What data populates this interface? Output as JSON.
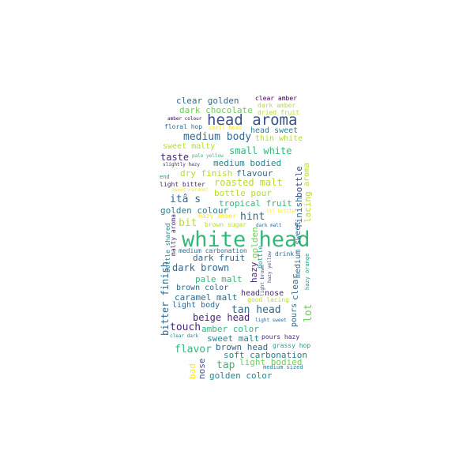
{
  "word_cloud": {
    "words": [
      {
        "text": "white head",
        "color": "#35b779"
      },
      {
        "text": "head aroma",
        "color": "#3b528b"
      },
      {
        "text": "medium body",
        "color": "#31688e"
      },
      {
        "text": "clear golden",
        "color": "#31688e"
      },
      {
        "text": "clear amber",
        "color": "#440154"
      },
      {
        "text": "dark chocolate",
        "color": "#6ece58"
      },
      {
        "text": "dark amber",
        "color": "#b5de2b"
      },
      {
        "text": "dried fruit",
        "color": "#b5de2b"
      },
      {
        "text": "amber colour",
        "color": "#440154"
      },
      {
        "text": "floral hop",
        "color": "#31688e"
      },
      {
        "text": "smell head",
        "color": "#fde725"
      },
      {
        "text": "head sweet",
        "color": "#26828e"
      },
      {
        "text": "thin white",
        "color": "#b5de2b"
      },
      {
        "text": "sweet malty",
        "color": "#b5de2b"
      },
      {
        "text": "small white",
        "color": "#35b779"
      },
      {
        "text": "pale yellow",
        "color": "#35b779"
      },
      {
        "text": "taste",
        "color": "#482878"
      },
      {
        "text": "medium bodied",
        "color": "#26828e"
      },
      {
        "text": "slightly hazy",
        "color": "#482878"
      },
      {
        "text": "dry finish",
        "color": "#b5de2b"
      },
      {
        "text": "flavour",
        "color": "#31688e"
      },
      {
        "text": "bottle",
        "color": "#3e4989"
      },
      {
        "text": "aroma",
        "color": "#b5de2b"
      },
      {
        "text": "end",
        "color": "#1f9e89"
      },
      {
        "text": "roasted malt",
        "color": "#b5de2b"
      },
      {
        "text": "light bitter",
        "color": "#482878"
      },
      {
        "text": "sweet caramel",
        "color": "#fde725"
      },
      {
        "text": "bottle pour",
        "color": "#b5de2b"
      },
      {
        "text": "itâ s",
        "color": "#31688e"
      },
      {
        "text": "tropical fruit",
        "color": "#35b779"
      },
      {
        "text": "golden colour",
        "color": "#26828e"
      },
      {
        "text": "oil bottle",
        "color": "#fde725"
      },
      {
        "text": "hint",
        "color": "#31688e"
      },
      {
        "text": "hazy amber",
        "color": "#fde725"
      },
      {
        "text": "bit",
        "color": "#b5de2b"
      },
      {
        "text": "brown sugar",
        "color": "#b5de2b"
      },
      {
        "text": "dark malt",
        "color": "#31688e"
      },
      {
        "text": "lacing",
        "color": "#b5de2b"
      },
      {
        "text": "finish",
        "color": "#31688e"
      },
      {
        "text": "bottle shared",
        "color": "#26828e"
      },
      {
        "text": "malty aroma",
        "color": "#482878"
      },
      {
        "text": "golden",
        "color": "#6ece58"
      },
      {
        "text": "medium carbonation",
        "color": "#31688e"
      },
      {
        "text": "drink",
        "color": "#31688e"
      },
      {
        "text": "dark fruit",
        "color": "#31688e"
      },
      {
        "text": "bottle",
        "color": "#1f9e89"
      },
      {
        "text": "dark brown",
        "color": "#31688e"
      },
      {
        "text": "hazy yellow",
        "color": "#3e4989"
      },
      {
        "text": "medium sweet",
        "color": "#31688e"
      },
      {
        "text": "hazy orange",
        "color": "#1f9e89"
      },
      {
        "text": "hazy",
        "color": "#482878"
      },
      {
        "text": "pale malt",
        "color": "#35b779"
      },
      {
        "text": "light brown",
        "color": "#3e4989"
      },
      {
        "text": "clear",
        "color": "#31688e"
      },
      {
        "text": "bitter finish",
        "color": "#31688e"
      },
      {
        "text": "brown color",
        "color": "#31688e"
      },
      {
        "text": "head nose",
        "color": "#482878"
      },
      {
        "text": "caramel malt",
        "color": "#31688e"
      },
      {
        "text": "good lacing",
        "color": "#b5de2b"
      },
      {
        "text": "light body",
        "color": "#31688e"
      },
      {
        "text": "tan head",
        "color": "#31688e"
      },
      {
        "text": "pours",
        "color": "#31688e"
      },
      {
        "text": "lot",
        "color": "#6ece58"
      },
      {
        "text": "beige head",
        "color": "#482878"
      },
      {
        "text": "light sweet",
        "color": "#31688e"
      },
      {
        "text": "touch",
        "color": "#482878"
      },
      {
        "text": "amber color",
        "color": "#35b779"
      },
      {
        "text": "sweet malt",
        "color": "#26828e"
      },
      {
        "text": "pours hazy",
        "color": "#482878"
      },
      {
        "text": "clear dark",
        "color": "#26828e"
      },
      {
        "text": "flavor",
        "color": "#35b779"
      },
      {
        "text": "brown head",
        "color": "#31688e"
      },
      {
        "text": "grassy hop",
        "color": "#1f9e89"
      },
      {
        "text": "soft carbonation",
        "color": "#26828e"
      },
      {
        "text": "tap",
        "color": "#35b779"
      },
      {
        "text": "light bodied",
        "color": "#6ece58"
      },
      {
        "text": "medium sized",
        "color": "#26828e"
      },
      {
        "text": "bad",
        "color": "#fde725"
      },
      {
        "text": "nose",
        "color": "#3b528b"
      },
      {
        "text": "golden color",
        "color": "#26828e"
      }
    ]
  }
}
